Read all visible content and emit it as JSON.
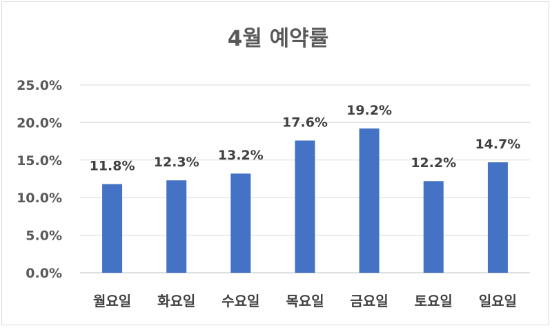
{
  "chart_data": {
    "type": "bar",
    "title": "4월 예약률",
    "categories": [
      "월요일",
      "화요일",
      "수요일",
      "목요일",
      "금요일",
      "토요일",
      "일요일"
    ],
    "values": [
      11.8,
      12.3,
      13.2,
      17.6,
      19.2,
      12.2,
      14.7
    ],
    "data_labels": [
      "11.8%",
      "12.3%",
      "13.2%",
      "17.6%",
      "19.2%",
      "12.2%",
      "14.7%"
    ],
    "y_ticks": [
      "0.0%",
      "5.0%",
      "10.0%",
      "15.0%",
      "20.0%",
      "25.0%"
    ],
    "ylim": [
      0,
      25
    ],
    "y_unit": "%",
    "grid": true,
    "legend": "none",
    "bar_color": "#4472c4",
    "grid_color": "#d9d9d9"
  }
}
